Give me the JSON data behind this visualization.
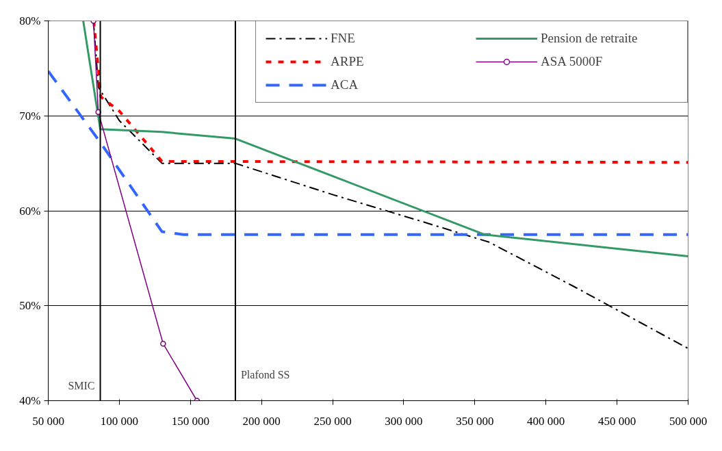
{
  "chart_data": {
    "type": "line",
    "xlim": [
      50000,
      500000
    ],
    "xticks": [
      {
        "value": 50000,
        "label": "50 000"
      },
      {
        "value": 100000,
        "label": "100 000"
      },
      {
        "value": 150000,
        "label": "150 000"
      },
      {
        "value": 200000,
        "label": "200 000"
      },
      {
        "value": 250000,
        "label": "250 000"
      },
      {
        "value": 300000,
        "label": "300 000"
      },
      {
        "value": 350000,
        "label": "350 000"
      },
      {
        "value": 400000,
        "label": "400 000"
      },
      {
        "value": 450000,
        "label": "450 000"
      },
      {
        "value": 500000,
        "label": "500 000"
      }
    ],
    "ylim": [
      40,
      80
    ],
    "yticks": [
      {
        "value": 40,
        "label": "40%"
      },
      {
        "value": 50,
        "label": "50%"
      },
      {
        "value": 60,
        "label": "60%"
      },
      {
        "value": 70,
        "label": "70%"
      },
      {
        "value": 80,
        "label": "80%"
      }
    ],
    "grid": "y",
    "legend": "top right",
    "series": [
      {
        "name": "FNE",
        "color": "#000000",
        "line_style": "dashdot",
        "x": [
          81800,
          85300,
          100000,
          130000,
          181600,
          250000,
          310000,
          360000,
          420000,
          500000
        ],
        "values": [
          80,
          73,
          69.5,
          65,
          65,
          61.7,
          59,
          56.7,
          52,
          45.5
        ]
      },
      {
        "name": "ARPE",
        "color": "#ff0000",
        "line_style": "dotted",
        "x": [
          82000,
          87000,
          100000,
          130000,
          500000
        ],
        "values": [
          80,
          72,
          70.5,
          65.2,
          65.1
        ]
      },
      {
        "name": "ACA",
        "color": "#3366ff",
        "line_style": "dashed",
        "x": [
          50000,
          86600,
          130000,
          145000,
          500000
        ],
        "values": [
          74.7,
          67.2,
          57.8,
          57.5,
          57.5
        ]
      },
      {
        "name": "Pension de retraite",
        "color": "#339966",
        "line_style": "solid",
        "x": [
          74600,
          86600,
          130000,
          181600,
          356700,
          500000
        ],
        "values": [
          80,
          68.6,
          68.3,
          67.6,
          57.5,
          55.2
        ]
      },
      {
        "name": "ASA 5000F",
        "color": "#800080",
        "line_style": "solid",
        "marker": "circle",
        "x": [
          81800,
          85200,
          130800,
          154600
        ],
        "values": [
          80,
          70.4,
          46,
          40
        ]
      }
    ],
    "ref_lines": [
      {
        "axis": "x",
        "value": 86600,
        "label": "SMIC",
        "color": "#000000"
      },
      {
        "axis": "x",
        "value": 181600,
        "label": "Plafond SS",
        "color": "#000000"
      }
    ]
  }
}
